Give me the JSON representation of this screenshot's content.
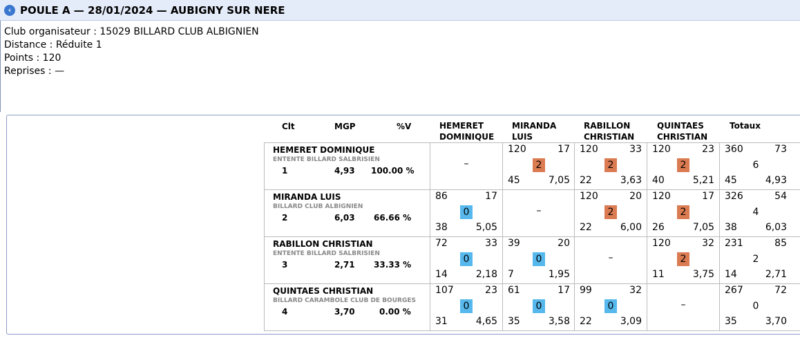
{
  "header": {
    "back_icon": "back-arrow-icon",
    "back_glyph": "‹",
    "title": "POULE A — 28/01/2024 — AUBIGNY SUR NERE"
  },
  "info": {
    "club": "Club organisateur : 15029 BILLARD CLUB ALBIGNIEN",
    "distance": "Distance : Réduite 1",
    "points": "Points : 120",
    "reprises": "Reprises : —"
  },
  "table": {
    "headers": {
      "clt": "Clt",
      "mgp": "MGP",
      "pv": "%V",
      "p1_line1": "HEMERET",
      "p1_line2": "DOMINIQUE",
      "p2_line1": "MIRANDA",
      "p2_line2": "LUIS",
      "p3_line1": "RABILLON",
      "p3_line2": "CHRISTIAN",
      "p4_line1": "QUINTAES",
      "p4_line2": "CHRISTIAN",
      "totaux": "Totaux"
    },
    "colors": {
      "win": "#db7b52",
      "loss": "#56b8ec"
    },
    "rows": [
      {
        "name": "HEMERET DOMINIQUE",
        "club": "ENTENTE BILLARD SALBRISIEN",
        "clt": "1",
        "mgp": "4,93",
        "pv": "100.00 %",
        "cells": [
          {
            "dash": "–"
          },
          {
            "tl": "120",
            "tr": "17",
            "badge": "2",
            "bl": "45",
            "br": "7,05"
          },
          {
            "tl": "120",
            "tr": "33",
            "badge": "2",
            "bl": "22",
            "br": "3,63"
          },
          {
            "tl": "120",
            "tr": "23",
            "badge": "2",
            "bl": "40",
            "br": "5,21"
          }
        ],
        "total": {
          "tl": "360",
          "tr": "73",
          "mid": "6",
          "bl": "45",
          "br": "4,93"
        }
      },
      {
        "name": "MIRANDA LUIS",
        "club": "BILLARD CLUB ALBIGNIEN",
        "clt": "2",
        "mgp": "6,03",
        "pv": "66.66 %",
        "cells": [
          {
            "tl": "86",
            "tr": "17",
            "badge": "0",
            "bl": "38",
            "br": "5,05"
          },
          {
            "dash": "–"
          },
          {
            "tl": "120",
            "tr": "20",
            "badge": "2",
            "bl": "22",
            "br": "6,00"
          },
          {
            "tl": "120",
            "tr": "17",
            "badge": "2",
            "bl": "26",
            "br": "7,05"
          }
        ],
        "total": {
          "tl": "326",
          "tr": "54",
          "mid": "4",
          "bl": "38",
          "br": "6,03"
        }
      },
      {
        "name": "RABILLON CHRISTIAN",
        "club": "ENTENTE BILLARD SALBRISIEN",
        "clt": "3",
        "mgp": "2,71",
        "pv": "33.33 %",
        "cells": [
          {
            "tl": "72",
            "tr": "33",
            "badge": "0",
            "bl": "14",
            "br": "2,18"
          },
          {
            "tl": "39",
            "tr": "20",
            "badge": "0",
            "bl": "7",
            "br": "1,95"
          },
          {
            "dash": "–"
          },
          {
            "tl": "120",
            "tr": "32",
            "badge": "2",
            "bl": "11",
            "br": "3,75"
          }
        ],
        "total": {
          "tl": "231",
          "tr": "85",
          "mid": "2",
          "bl": "14",
          "br": "2,71"
        }
      },
      {
        "name": "QUINTAES CHRISTIAN",
        "club": "BILLARD CARAMBOLE CLUB DE BOURGES",
        "clt": "4",
        "mgp": "3,70",
        "pv": "0.00 %",
        "cells": [
          {
            "tl": "107",
            "tr": "23",
            "badge": "0",
            "bl": "31",
            "br": "4,65"
          },
          {
            "tl": "61",
            "tr": "17",
            "badge": "0",
            "bl": "35",
            "br": "3,58"
          },
          {
            "tl": "99",
            "tr": "32",
            "badge": "0",
            "bl": "22",
            "br": "3,09"
          },
          {
            "dash": "–"
          }
        ],
        "total": {
          "tl": "267",
          "tr": "72",
          "mid": "0",
          "bl": "35",
          "br": "3,70"
        }
      }
    ]
  }
}
